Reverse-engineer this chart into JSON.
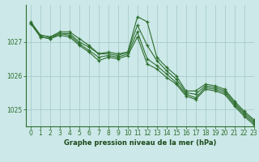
{
  "title": "Graphe pression niveau de la mer (hPa)",
  "background_color": "#cce8e8",
  "grid_color": "#aacccc",
  "line_color": "#2d6e2d",
  "xlim": [
    -0.5,
    23
  ],
  "ylim": [
    1024.5,
    1028.1
  ],
  "yticks": [
    1025,
    1026,
    1027
  ],
  "xticks": [
    0,
    1,
    2,
    3,
    4,
    5,
    6,
    7,
    8,
    9,
    10,
    11,
    12,
    13,
    14,
    15,
    16,
    17,
    18,
    19,
    20,
    21,
    22,
    23
  ],
  "series": [
    [
      1027.6,
      1027.2,
      1027.15,
      1027.3,
      1027.3,
      1027.1,
      1026.9,
      1026.65,
      1026.7,
      1026.65,
      1026.7,
      1027.75,
      1027.6,
      1026.55,
      1026.25,
      1026.0,
      1025.55,
      1025.55,
      1025.75,
      1025.7,
      1025.6,
      1025.25,
      1024.95,
      1024.7
    ],
    [
      1027.55,
      1027.2,
      1027.15,
      1027.25,
      1027.25,
      1027.0,
      1026.85,
      1026.65,
      1026.65,
      1026.6,
      1026.7,
      1027.5,
      1026.9,
      1026.45,
      1026.15,
      1025.9,
      1025.5,
      1025.45,
      1025.7,
      1025.65,
      1025.55,
      1025.2,
      1024.9,
      1024.65
    ],
    [
      1027.55,
      1027.15,
      1027.1,
      1027.25,
      1027.2,
      1026.95,
      1026.75,
      1026.55,
      1026.6,
      1026.55,
      1026.65,
      1027.3,
      1026.5,
      1026.3,
      1026.05,
      1025.8,
      1025.45,
      1025.35,
      1025.65,
      1025.6,
      1025.5,
      1025.15,
      1024.85,
      1024.6
    ],
    [
      1027.55,
      1027.15,
      1027.1,
      1027.2,
      1027.15,
      1026.9,
      1026.7,
      1026.45,
      1026.55,
      1026.5,
      1026.6,
      1027.15,
      1026.35,
      1026.2,
      1025.95,
      1025.75,
      1025.4,
      1025.3,
      1025.6,
      1025.55,
      1025.45,
      1025.1,
      1024.8,
      1024.55
    ]
  ]
}
